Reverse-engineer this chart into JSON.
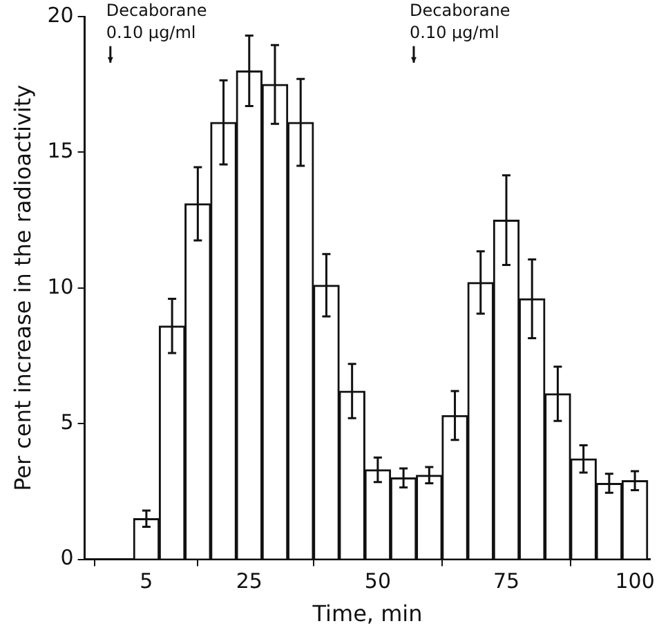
{
  "chart_data": {
    "type": "bar",
    "xlabel": "Time, min",
    "ylabel": "Per cent increase in the radioactivity",
    "x": [
      5,
      10,
      15,
      20,
      25,
      30,
      35,
      40,
      45,
      50,
      55,
      60,
      65,
      70,
      75,
      80,
      85,
      90,
      95,
      100
    ],
    "values": [
      1.5,
      8.6,
      13.1,
      16.1,
      18.0,
      17.5,
      16.1,
      10.1,
      6.2,
      3.3,
      3.0,
      3.1,
      5.3,
      10.2,
      12.5,
      9.6,
      6.1,
      3.7,
      2.8,
      2.9
    ],
    "errors": [
      0.3,
      1.0,
      1.35,
      1.55,
      1.3,
      1.45,
      1.6,
      1.15,
      1.0,
      0.45,
      0.35,
      0.3,
      0.9,
      1.15,
      1.65,
      1.45,
      1.0,
      0.5,
      0.35,
      0.35
    ],
    "color": "#ffffff",
    "xlim": [
      -7,
      103
    ],
    "xticks": [
      5,
      25,
      50,
      75,
      100
    ],
    "ylim": [
      0,
      20
    ],
    "yticks": [
      0,
      5,
      10,
      15,
      20
    ],
    "grid": false,
    "legend": false,
    "annotations": [
      {
        "text": "Decaborane\n0.10 µg/ml",
        "x": -2,
        "y": 18.3
      },
      {
        "text": "Decaborane\n0.10 µg/ml",
        "x": 57,
        "y": 18.3
      }
    ]
  }
}
